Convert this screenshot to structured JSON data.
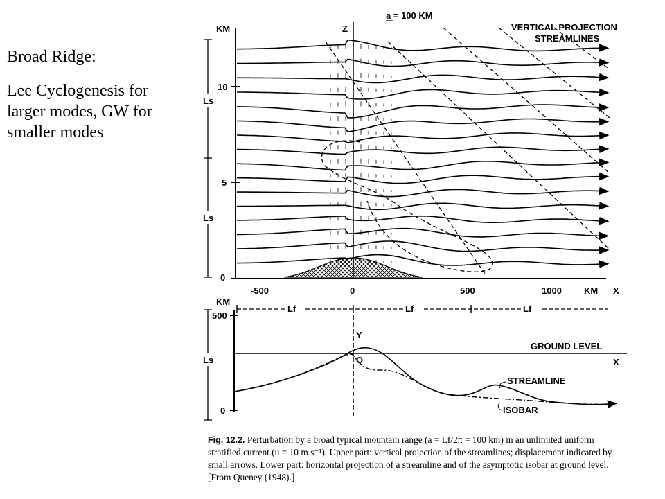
{
  "slide": {
    "title": "Broad Ridge:",
    "body": "Lee Cyclogenesis for larger modes, GW for smaller modes"
  },
  "figure": {
    "param_label": "a = 100 KM",
    "vertical_projection_label": "VERTICAL PROJECTION",
    "streamlines_label": "STREAMLINES",
    "upper": {
      "z_axis_label": "Z",
      "unit_label": "KM",
      "y_ticks": [
        "0",
        "5",
        "10"
      ],
      "ls_label": "Ls",
      "x_ticks": [
        "-500",
        "0",
        "500",
        "1000",
        "KM"
      ],
      "x_axis_label": "X"
    },
    "lower": {
      "unit_label": "KM",
      "y_ticks": [
        "500",
        "0"
      ],
      "ls_label": "Ls",
      "lf_label": "Lf",
      "y_axis_label": "Y",
      "origin_label": "O",
      "ground_level_label": "GROUND LEVEL",
      "x_axis_label": "X",
      "streamline_label": "STREAMLINE",
      "isobar_label": "ISOBAR"
    },
    "caption": {
      "fig_label": "Fig. 12.2.",
      "text": "Perturbation by a broad typical mountain range (a = Lf/2π = 100 km) in an unlimited uniform stratified current (u = 10 m s⁻¹). Upper part: vertical projection of the streamlines; displacement indicated by small arrows. Lower part: horizontal projection of a streamline and of the asymptotic isobar at ground level. [From Queney (1948).]"
    }
  }
}
